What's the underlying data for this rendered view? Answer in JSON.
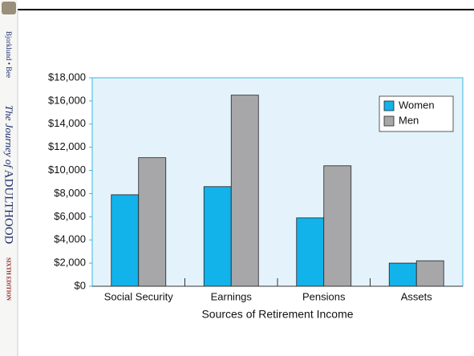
{
  "sidebar": {
    "authors": "Bjorklund • Bee",
    "title_italic": "The Journey of",
    "title_caps": "ADULTHOOD",
    "edition": "SIXTH EDITION"
  },
  "chart_data": {
    "type": "bar",
    "x_label": "Sources of Retirement Income",
    "categories": [
      "Social Security",
      "Earnings",
      "Pensions",
      "Assets"
    ],
    "series": [
      {
        "name": "Women",
        "color": "#12b2ea",
        "values": [
          7900,
          8600,
          5900,
          2000
        ]
      },
      {
        "name": "Men",
        "color": "#a7a7a9",
        "values": [
          11100,
          16500,
          10400,
          2200
        ]
      }
    ],
    "ylim": [
      0,
      18000
    ],
    "yticks": [
      {
        "value": 0,
        "label": "$0"
      },
      {
        "value": 2000,
        "label": "$2,000"
      },
      {
        "value": 4000,
        "label": "$4,000"
      },
      {
        "value": 6000,
        "label": "$6,000"
      },
      {
        "value": 8000,
        "label": "$8,000"
      },
      {
        "value": 10000,
        "label": "$10,000"
      },
      {
        "value": 12000,
        "label": "$12,000"
      },
      {
        "value": 14000,
        "label": "$14,000"
      },
      {
        "value": 16000,
        "label": "$16,000"
      },
      {
        "value": 18000,
        "label": "$18,000"
      }
    ],
    "legend": "upper right",
    "plot_background": "#e4f3fb"
  }
}
